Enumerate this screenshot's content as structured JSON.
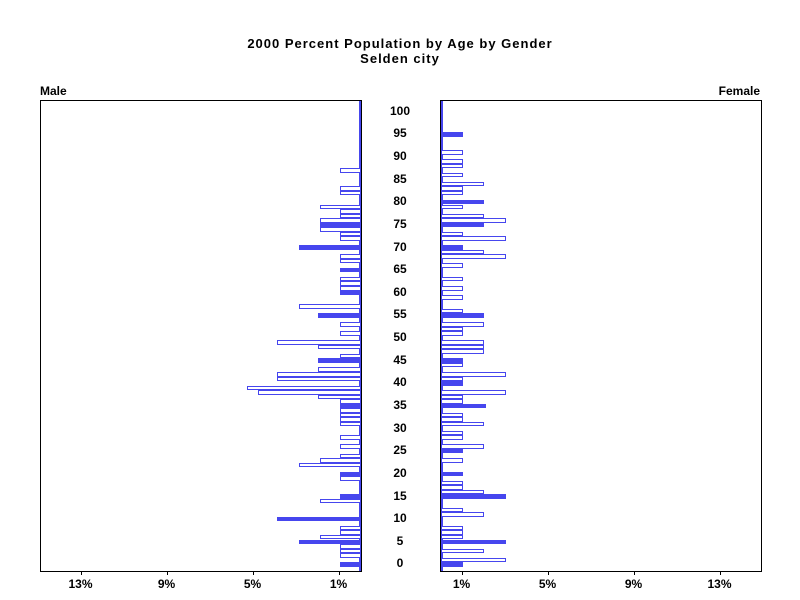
{
  "title": "2000 Percent Population by Age by Gender",
  "subtitle": "Selden city",
  "left_side_label": "Male",
  "right_side_label": "Female",
  "chart_data": {
    "type": "bar",
    "variant": "population-pyramid",
    "title": "2000 Percent Population by Age by Gender",
    "subtitle": "Selden city",
    "unit": "percent of population",
    "age_axis": {
      "min": 0,
      "max": 100,
      "step": 5,
      "labels": [
        "100",
        "95",
        "90",
        "85",
        "80",
        "75",
        "70",
        "65",
        "60",
        "55",
        "50",
        "45",
        "40",
        "35",
        "30",
        "25",
        "20",
        "15",
        "10",
        "5",
        "0"
      ]
    },
    "pct_axis": {
      "left_tick_labels": [
        "13%",
        "9%",
        "5%",
        "1%"
      ],
      "left_tick_values": [
        13,
        9,
        5,
        1
      ],
      "right_tick_labels": [
        "1%",
        "5%",
        "9%",
        "13%"
      ],
      "right_tick_values": [
        1,
        5,
        9,
        13
      ],
      "max": 15
    },
    "legend_note": "bars at ages that are multiples of 5 are filled solid",
    "colors": {
      "bar_outline": "#4646ee",
      "bar_fill_solid": "#4646ee",
      "bar_fill_hollow": "#ffffff",
      "frame": "#000000"
    },
    "series": [
      {
        "name": "Male",
        "side": "left",
        "bars": [
          [
            87,
            1.0,
            0
          ],
          [
            83,
            1.0,
            0
          ],
          [
            82,
            1.0,
            0
          ],
          [
            79,
            1.9,
            0
          ],
          [
            78,
            1.0,
            0
          ],
          [
            77,
            1.0,
            0
          ],
          [
            76,
            1.9,
            0
          ],
          [
            75,
            1.9,
            1
          ],
          [
            74,
            1.9,
            0
          ],
          [
            73,
            1.0,
            0
          ],
          [
            72,
            1.0,
            0
          ],
          [
            70,
            2.9,
            1
          ],
          [
            68,
            1.0,
            0
          ],
          [
            67,
            1.0,
            0
          ],
          [
            65,
            1.0,
            1
          ],
          [
            63,
            1.0,
            0
          ],
          [
            62,
            1.0,
            0
          ],
          [
            61,
            1.0,
            0
          ],
          [
            60,
            1.0,
            1
          ],
          [
            57,
            2.9,
            0
          ],
          [
            55,
            2.0,
            1
          ],
          [
            53,
            1.0,
            0
          ],
          [
            51,
            1.0,
            0
          ],
          [
            49,
            3.9,
            0
          ],
          [
            48,
            2.0,
            0
          ],
          [
            46,
            1.0,
            0
          ],
          [
            45,
            2.0,
            1
          ],
          [
            43,
            2.0,
            0
          ],
          [
            42,
            3.9,
            0
          ],
          [
            41,
            3.9,
            0
          ],
          [
            39,
            5.3,
            0
          ],
          [
            38,
            4.8,
            0
          ],
          [
            37,
            2.0,
            0
          ],
          [
            36,
            1.0,
            0
          ],
          [
            35,
            1.0,
            1
          ],
          [
            34,
            1.0,
            0
          ],
          [
            33,
            1.0,
            0
          ],
          [
            32,
            1.0,
            0
          ],
          [
            31,
            1.0,
            0
          ],
          [
            28,
            1.0,
            0
          ],
          [
            26,
            1.0,
            0
          ],
          [
            24,
            1.0,
            0
          ],
          [
            23,
            1.9,
            0
          ],
          [
            22,
            2.9,
            0
          ],
          [
            20,
            1.0,
            1
          ],
          [
            19,
            1.0,
            0
          ],
          [
            15,
            1.0,
            1
          ],
          [
            14,
            1.9,
            0
          ],
          [
            10,
            3.9,
            1
          ],
          [
            8,
            1.0,
            0
          ],
          [
            7,
            1.0,
            0
          ],
          [
            6,
            1.9,
            0
          ],
          [
            5,
            2.9,
            1
          ],
          [
            4,
            1.0,
            0
          ],
          [
            3,
            1.0,
            0
          ],
          [
            2,
            1.0,
            0
          ],
          [
            0,
            1.0,
            1
          ]
        ]
      },
      {
        "name": "Female",
        "side": "right",
        "bars": [
          [
            95,
            1.0,
            1
          ],
          [
            91,
            1.0,
            0
          ],
          [
            89,
            1.0,
            0
          ],
          [
            88,
            1.0,
            0
          ],
          [
            86,
            1.0,
            0
          ],
          [
            84,
            2.0,
            0
          ],
          [
            83,
            1.0,
            0
          ],
          [
            82,
            1.0,
            0
          ],
          [
            80,
            2.0,
            1
          ],
          [
            79,
            1.0,
            0
          ],
          [
            77,
            2.0,
            0
          ],
          [
            76,
            3.0,
            0
          ],
          [
            75,
            2.0,
            1
          ],
          [
            73,
            1.0,
            0
          ],
          [
            72,
            3.0,
            0
          ],
          [
            70,
            1.0,
            1
          ],
          [
            69,
            2.0,
            0
          ],
          [
            68,
            3.0,
            0
          ],
          [
            66,
            1.0,
            0
          ],
          [
            63,
            1.0,
            0
          ],
          [
            61,
            1.0,
            0
          ],
          [
            59,
            1.0,
            0
          ],
          [
            56,
            1.0,
            0
          ],
          [
            55,
            2.0,
            1
          ],
          [
            53,
            2.0,
            0
          ],
          [
            52,
            1.0,
            0
          ],
          [
            51,
            1.0,
            0
          ],
          [
            49,
            2.0,
            0
          ],
          [
            48,
            2.0,
            0
          ],
          [
            47,
            2.0,
            0
          ],
          [
            45,
            1.0,
            1
          ],
          [
            44,
            1.0,
            0
          ],
          [
            42,
            3.0,
            0
          ],
          [
            41,
            1.0,
            0
          ],
          [
            40,
            1.0,
            1
          ],
          [
            38,
            3.0,
            0
          ],
          [
            37,
            1.0,
            0
          ],
          [
            36,
            1.0,
            0
          ],
          [
            35,
            2.1,
            1
          ],
          [
            33,
            1.0,
            0
          ],
          [
            32,
            1.0,
            0
          ],
          [
            31,
            2.0,
            0
          ],
          [
            29,
            1.0,
            0
          ],
          [
            28,
            1.0,
            0
          ],
          [
            26,
            2.0,
            0
          ],
          [
            25,
            1.0,
            1
          ],
          [
            23,
            1.0,
            0
          ],
          [
            20,
            1.0,
            1
          ],
          [
            18,
            1.0,
            0
          ],
          [
            17,
            1.0,
            0
          ],
          [
            16,
            2.0,
            0
          ],
          [
            15,
            3.0,
            1
          ],
          [
            12,
            1.0,
            0
          ],
          [
            11,
            2.0,
            0
          ],
          [
            8,
            1.0,
            0
          ],
          [
            7,
            1.0,
            0
          ],
          [
            6,
            1.0,
            0
          ],
          [
            5,
            3.0,
            1
          ],
          [
            3,
            2.0,
            0
          ],
          [
            1,
            3.0,
            0
          ],
          [
            0,
            1.0,
            1
          ]
        ]
      }
    ]
  }
}
